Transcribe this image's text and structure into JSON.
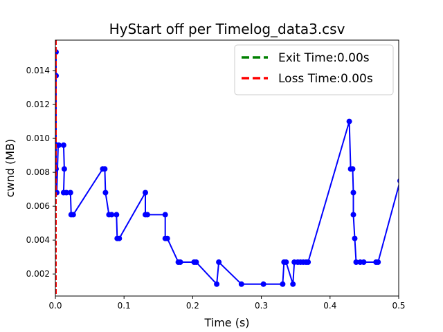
{
  "chart_data": {
    "type": "line",
    "title": "HyStart off per Timelog_data3.csv",
    "xlabel": "Time (s)",
    "ylabel": "cwnd (MB)",
    "xlim": [
      0.0,
      0.5
    ],
    "ylim": [
      0.0007,
      0.0158
    ],
    "x_ticks": [
      0.0,
      0.1,
      0.2,
      0.3,
      0.4,
      0.5
    ],
    "x_tick_labels": [
      "0.0",
      "0.1",
      "0.2",
      "0.3",
      "0.4",
      "0.5"
    ],
    "y_ticks": [
      0.002,
      0.004,
      0.006,
      0.008,
      0.01,
      0.012,
      0.014
    ],
    "y_tick_labels": [
      "0.002",
      "0.004",
      "0.006",
      "0.008",
      "0.010",
      "0.012",
      "0.014"
    ],
    "grid": false,
    "legend_position": "top-right",
    "legend": [
      {
        "label": "Exit Time:0.00s",
        "color": "#008000",
        "style": "dashed"
      },
      {
        "label": "Loss Time:0.00s",
        "color": "#ff0000",
        "style": "dashed"
      }
    ],
    "vlines": [
      {
        "x": 0.0,
        "color": "#008000"
      },
      {
        "x": 0.0,
        "color": "#ff0000"
      }
    ],
    "series": [
      {
        "color": "#0000ff",
        "marker": "circle",
        "points": [
          [
            0.001,
            0.0151
          ],
          [
            0.001,
            0.0137
          ],
          [
            0.001,
            0.0082
          ],
          [
            0.002,
            0.0068
          ],
          [
            0.004,
            0.0096
          ],
          [
            0.005,
            0.0096
          ],
          [
            0.012,
            0.0096
          ],
          [
            0.013,
            0.0082
          ],
          [
            0.012,
            0.0068
          ],
          [
            0.016,
            0.0068
          ],
          [
            0.022,
            0.0068
          ],
          [
            0.023,
            0.0055
          ],
          [
            0.026,
            0.0055
          ],
          [
            0.069,
            0.0082
          ],
          [
            0.072,
            0.0082
          ],
          [
            0.073,
            0.0068
          ],
          [
            0.078,
            0.0055
          ],
          [
            0.082,
            0.0055
          ],
          [
            0.089,
            0.0055
          ],
          [
            0.09,
            0.0041
          ],
          [
            0.093,
            0.0041
          ],
          [
            0.131,
            0.0068
          ],
          [
            0.131,
            0.0055
          ],
          [
            0.134,
            0.0055
          ],
          [
            0.16,
            0.0055
          ],
          [
            0.16,
            0.0041
          ],
          [
            0.163,
            0.0041
          ],
          [
            0.179,
            0.0027
          ],
          [
            0.182,
            0.0027
          ],
          [
            0.202,
            0.0027
          ],
          [
            0.205,
            0.0027
          ],
          [
            0.235,
            0.0014
          ],
          [
            0.238,
            0.0027
          ],
          [
            0.271,
            0.0014
          ],
          [
            0.303,
            0.0014
          ],
          [
            0.331,
            0.0014
          ],
          [
            0.333,
            0.0027
          ],
          [
            0.336,
            0.0027
          ],
          [
            0.346,
            0.0014
          ],
          [
            0.348,
            0.0027
          ],
          [
            0.353,
            0.0027
          ],
          [
            0.357,
            0.0027
          ],
          [
            0.361,
            0.0027
          ],
          [
            0.365,
            0.0027
          ],
          [
            0.368,
            0.0027
          ],
          [
            0.428,
            0.011
          ],
          [
            0.43,
            0.0082
          ],
          [
            0.433,
            0.0082
          ],
          [
            0.434,
            0.0068
          ],
          [
            0.434,
            0.0055
          ],
          [
            0.436,
            0.0041
          ],
          [
            0.438,
            0.0027
          ],
          [
            0.444,
            0.0027
          ],
          [
            0.449,
            0.0027
          ],
          [
            0.467,
            0.0027
          ],
          [
            0.47,
            0.0027
          ],
          [
            0.502,
            0.0075
          ]
        ]
      }
    ]
  }
}
